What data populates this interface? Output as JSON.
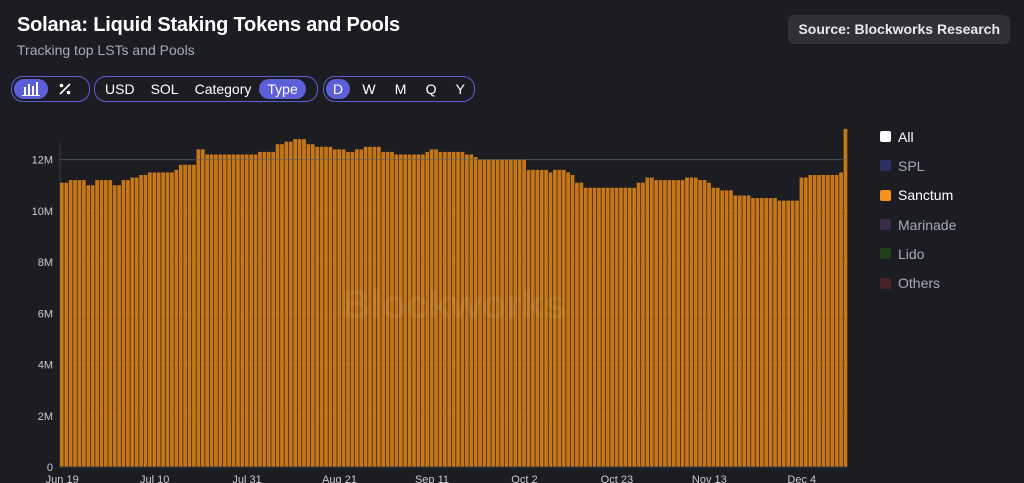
{
  "header": {
    "title": "Solana: Liquid Staking Tokens and Pools",
    "subtitle": "Tracking top LSTs and Pools",
    "source_label": "Source: Blockworks Research"
  },
  "controls": {
    "view_icons": [
      {
        "icon": "bar-chart-icon",
        "active": true
      },
      {
        "icon": "percent-icon",
        "active": false
      }
    ],
    "dimension_tabs": [
      {
        "label": "USD",
        "active": false
      },
      {
        "label": "SOL",
        "active": false
      },
      {
        "label": "Category",
        "active": false
      },
      {
        "label": "Type",
        "active": true
      }
    ],
    "interval_tabs": [
      {
        "label": "D",
        "active": true
      },
      {
        "label": "W",
        "active": false
      },
      {
        "label": "M",
        "active": false
      },
      {
        "label": "Q",
        "active": false
      },
      {
        "label": "Y",
        "active": false
      }
    ]
  },
  "watermark": "Blockworks",
  "legend": [
    {
      "label": "All",
      "color": "#ffffff",
      "enabled": true
    },
    {
      "label": "SPL",
      "color": "#2b2f66",
      "enabled": false
    },
    {
      "label": "Sanctum",
      "color": "#f7931a",
      "enabled": true
    },
    {
      "label": "Marinade",
      "color": "#3a2b4a",
      "enabled": false
    },
    {
      "label": "Lido",
      "color": "#21401c",
      "enabled": false
    },
    {
      "label": "Others",
      "color": "#4a2226",
      "enabled": false
    }
  ],
  "chart_data": {
    "type": "bar",
    "stacked": true,
    "bar_color": "#c77716",
    "ylim": [
      0,
      13000000
    ],
    "y_ticks": [
      {
        "value": 0,
        "label": "0"
      },
      {
        "value": 2000000,
        "label": "2M"
      },
      {
        "value": 4000000,
        "label": "4M"
      },
      {
        "value": 6000000,
        "label": "6M"
      },
      {
        "value": 8000000,
        "label": "8M"
      },
      {
        "value": 10000000,
        "label": "10M"
      },
      {
        "value": 12000000,
        "label": "12M"
      }
    ],
    "x_ticks": [
      {
        "index": 0,
        "label": "Jun 19"
      },
      {
        "index": 21,
        "label": "Jul 10"
      },
      {
        "index": 42,
        "label": "Jul 31"
      },
      {
        "index": 63,
        "label": "Aug 21"
      },
      {
        "index": 84,
        "label": "Sep 11"
      },
      {
        "index": 105,
        "label": "Oct 2"
      },
      {
        "index": 126,
        "label": "Oct 23"
      },
      {
        "index": 147,
        "label": "Nov 13"
      },
      {
        "index": 168,
        "label": "Dec 4"
      }
    ],
    "series": [
      {
        "name": "Sanctum",
        "values": [
          11.1,
          11.1,
          11.2,
          11.2,
          11.2,
          11.2,
          11.0,
          11.0,
          11.2,
          11.2,
          11.2,
          11.2,
          11.0,
          11.0,
          11.2,
          11.2,
          11.3,
          11.3,
          11.4,
          11.4,
          11.5,
          11.5,
          11.5,
          11.5,
          11.5,
          11.5,
          11.6,
          11.8,
          11.8,
          11.8,
          11.8,
          12.4,
          12.4,
          12.2,
          12.2,
          12.2,
          12.2,
          12.2,
          12.2,
          12.2,
          12.2,
          12.2,
          12.2,
          12.2,
          12.2,
          12.3,
          12.3,
          12.3,
          12.3,
          12.6,
          12.6,
          12.7,
          12.7,
          12.8,
          12.8,
          12.8,
          12.6,
          12.6,
          12.5,
          12.5,
          12.5,
          12.5,
          12.4,
          12.4,
          12.4,
          12.3,
          12.3,
          12.4,
          12.4,
          12.5,
          12.5,
          12.5,
          12.5,
          12.3,
          12.3,
          12.3,
          12.2,
          12.2,
          12.2,
          12.2,
          12.2,
          12.2,
          12.2,
          12.3,
          12.4,
          12.4,
          12.3,
          12.3,
          12.3,
          12.3,
          12.3,
          12.3,
          12.2,
          12.2,
          12.1,
          12.0,
          12.0,
          12.0,
          12.0,
          12.0,
          12.0,
          12.0,
          12.0,
          12.0,
          12.0,
          12.0,
          11.6,
          11.6,
          11.6,
          11.6,
          11.6,
          11.5,
          11.6,
          11.6,
          11.6,
          11.5,
          11.4,
          11.1,
          11.1,
          10.9,
          10.9,
          10.9,
          10.9,
          10.9,
          10.9,
          10.9,
          10.9,
          10.9,
          10.9,
          10.9,
          10.9,
          11.1,
          11.1,
          11.3,
          11.3,
          11.2,
          11.2,
          11.2,
          11.2,
          11.2,
          11.2,
          11.2,
          11.3,
          11.3,
          11.3,
          11.2,
          11.2,
          11.1,
          10.9,
          10.9,
          10.8,
          10.8,
          10.8,
          10.6,
          10.6,
          10.6,
          10.6,
          10.5,
          10.5,
          10.5,
          10.5,
          10.5,
          10.5,
          10.4,
          10.4,
          10.4,
          10.4,
          10.4,
          11.3,
          11.3,
          11.4,
          11.4,
          11.4,
          11.4,
          11.4,
          11.4,
          11.4,
          11.5,
          13.2
        ]
      }
    ],
    "value_unit_multiplier": 1000000
  }
}
